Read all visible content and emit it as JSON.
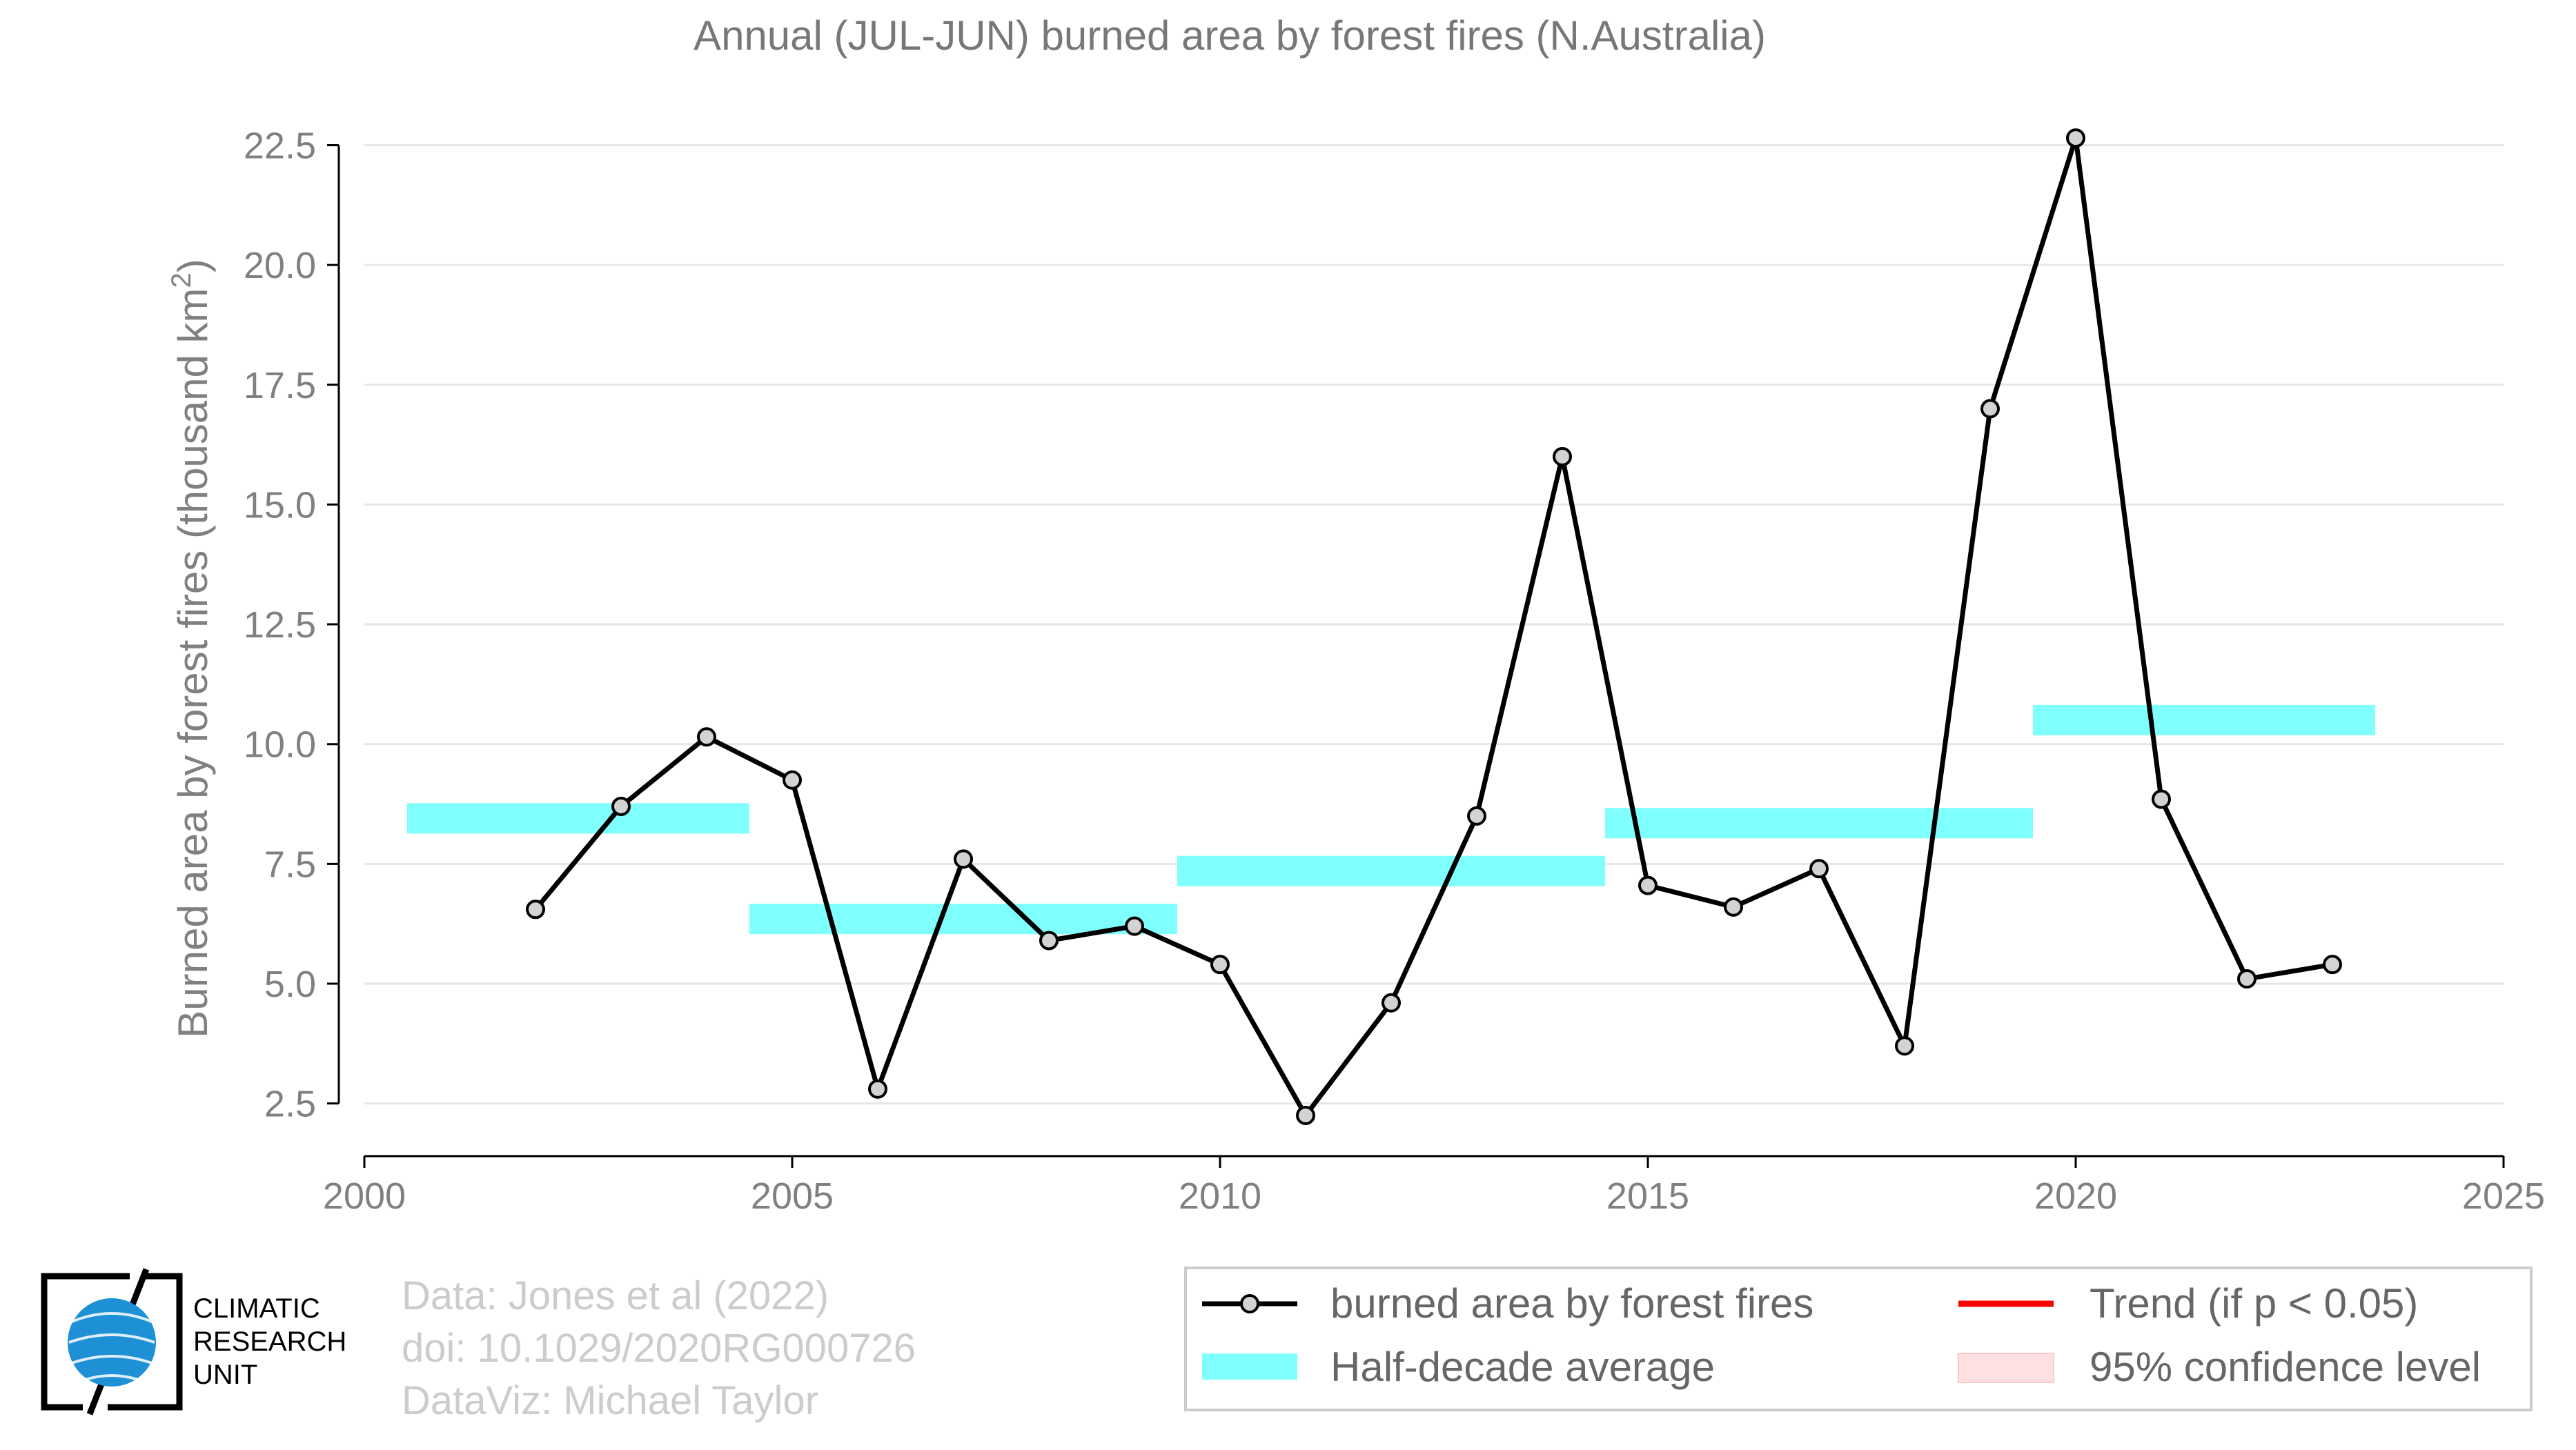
{
  "chart_data": {
    "type": "line",
    "title": "Annual (JUL-JUN) burned area by forest fires (N.Australia)",
    "xlabel": "",
    "ylabel_main": "Burned area by forest fires (thousand km",
    "ylabel_sup": "2",
    "ylabel_close": ")",
    "xlim": [
      2000,
      2025
    ],
    "ylim": [
      1.4,
      23.4
    ],
    "xticks": [
      2000,
      2005,
      2010,
      2015,
      2020,
      2025
    ],
    "yticks": [
      2.5,
      5.0,
      7.5,
      10.0,
      12.5,
      15.0,
      17.5,
      20.0,
      22.5
    ],
    "ytick_labels": [
      "2.5",
      "5.0",
      "7.5",
      "10.0",
      "12.5",
      "15.0",
      "17.5",
      "20.0",
      "22.5"
    ],
    "grid": "horizontal",
    "legend_position": "bottom-right",
    "series": [
      {
        "name": "burned area by forest fires",
        "color": "#000000",
        "marker_fill": "#d3d3d3",
        "x": [
          2002,
          2003,
          2004,
          2005,
          2006,
          2007,
          2008,
          2009,
          2010,
          2011,
          2012,
          2013,
          2014,
          2015,
          2016,
          2017,
          2018,
          2019,
          2020,
          2021,
          2022,
          2023
        ],
        "y": [
          6.55,
          8.7,
          10.15,
          9.25,
          2.8,
          7.6,
          5.9,
          6.2,
          5.4,
          2.25,
          4.6,
          8.5,
          16.0,
          7.05,
          6.6,
          7.4,
          3.7,
          17.0,
          22.65,
          8.85,
          5.1,
          5.4
        ]
      }
    ],
    "half_decade_average": {
      "name": "Half-decade average",
      "color": "#80ffff",
      "segments": [
        {
          "x_start": 2000.5,
          "x_end": 2004.5,
          "y": 8.45
        },
        {
          "x_start": 2004.5,
          "x_end": 2009.5,
          "y": 6.35
        },
        {
          "x_start": 2009.5,
          "x_end": 2014.5,
          "y": 7.35
        },
        {
          "x_start": 2014.5,
          "x_end": 2019.5,
          "y": 8.35
        },
        {
          "x_start": 2019.5,
          "x_end": 2023.5,
          "y": 10.5
        }
      ]
    },
    "legend": [
      {
        "label": "burned area by forest fires",
        "kind": "line-marker",
        "color": "#000000"
      },
      {
        "label": "Trend (if p < 0.05)",
        "kind": "line",
        "color": "#ff0000"
      },
      {
        "label": "Half-decade average",
        "kind": "band",
        "color": "#80ffff"
      },
      {
        "label": "95% confidence level",
        "kind": "band",
        "color": "#ffe0e0"
      }
    ]
  },
  "credits": {
    "line1": "Data: Jones et al (2022)",
    "line2": "doi: 10.1029/2020RG000726",
    "line3": "DataViz: Michael Taylor"
  },
  "logo": {
    "line1": "CLIMATIC",
    "line2": "RESEARCH",
    "line3": "UNIT",
    "globe_color": "#1e90d6"
  }
}
